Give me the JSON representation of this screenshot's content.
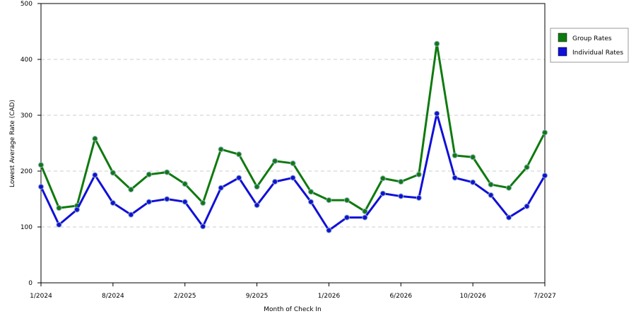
{
  "chart_data": {
    "type": "line",
    "x_label": "Month of Check In",
    "y_label": "Lowest Average Rate (CAD)",
    "categories": [
      "1/2024",
      null,
      null,
      null,
      "8/2024",
      null,
      null,
      null,
      "2/2025",
      null,
      null,
      null,
      "9/2025",
      null,
      null,
      null,
      "1/2026",
      null,
      null,
      null,
      "6/2026",
      null,
      null,
      null,
      "10/2026",
      null,
      null,
      null,
      "7/2027"
    ],
    "series": [
      {
        "name": "Group Rates",
        "color": "#0f7a0f",
        "values": [
          211,
          134,
          138,
          258,
          197,
          167,
          194,
          198,
          177,
          143,
          239,
          230,
          172,
          218,
          214,
          163,
          148,
          148,
          128,
          187,
          181,
          194,
          428,
          228,
          225,
          176,
          170,
          207,
          269
        ]
      },
      {
        "name": "Individual Rates",
        "color": "#1010d8",
        "values": [
          172,
          104,
          131,
          193,
          143,
          122,
          145,
          150,
          145,
          101,
          170,
          188,
          139,
          181,
          188,
          145,
          94,
          117,
          117,
          160,
          155,
          152,
          303,
          188,
          180,
          157,
          117,
          137,
          192
        ]
      }
    ],
    "ylim": [
      0,
      500
    ],
    "yticks": [
      0,
      100,
      200,
      300,
      400,
      500
    ],
    "grid": true,
    "legend": "right"
  }
}
